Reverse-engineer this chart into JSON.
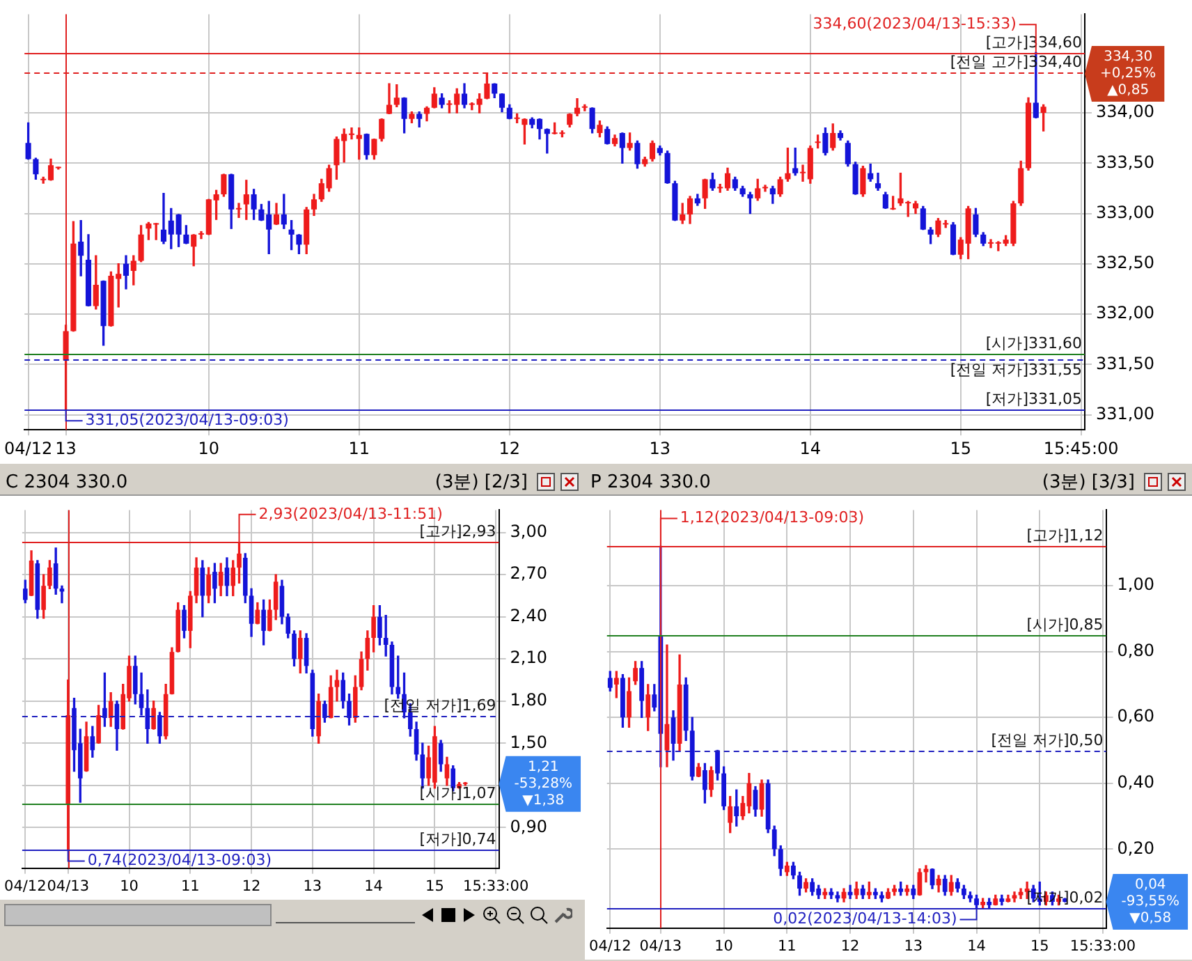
{
  "chart_data": [
    {
      "type": "candlestick",
      "grid": true,
      "legend": false,
      "categories": [
        "04/12",
        null,
        null,
        null,
        null,
        "13",
        null,
        null,
        null,
        null,
        null,
        null,
        null,
        null,
        null,
        null,
        null,
        null,
        null,
        null,
        null,
        null,
        null,
        null,
        "10",
        null,
        null,
        null,
        null,
        null,
        null,
        null,
        null,
        null,
        null,
        null,
        null,
        null,
        null,
        null,
        null,
        null,
        null,
        null,
        "11",
        null,
        null,
        null,
        null,
        null,
        null,
        null,
        null,
        null,
        null,
        null,
        null,
        null,
        null,
        null,
        null,
        null,
        null,
        null,
        "12",
        null,
        null,
        null,
        null,
        null,
        null,
        null,
        null,
        null,
        null,
        null,
        null,
        null,
        null,
        null,
        null,
        null,
        null,
        null,
        "13",
        null,
        null,
        null,
        null,
        null,
        null,
        null,
        null,
        null,
        null,
        null,
        null,
        null,
        null,
        null,
        null,
        null,
        null,
        null,
        "14",
        null,
        null,
        null,
        null,
        null,
        null,
        null,
        null,
        null,
        null,
        null,
        null,
        null,
        null,
        null,
        null,
        null,
        null,
        null,
        "15",
        null,
        null,
        null,
        null,
        null,
        null,
        null,
        null,
        null,
        null,
        null,
        null,
        null,
        null,
        null,
        "15:45:00"
      ],
      "ohlc": [
        [
          333.7,
          333.9,
          333.54,
          333.54
        ],
        [
          333.54,
          333.55,
          333.34,
          333.39
        ],
        [
          333.33,
          333.36,
          333.3,
          333.33
        ],
        [
          333.33,
          333.54,
          333.33,
          333.48
        ],
        [
          333.45,
          333.46,
          333.44,
          333.45
        ],
        [
          331.54,
          331.89,
          331.05,
          331.83
        ],
        [
          331.83,
          332.92,
          331.83,
          332.7
        ],
        [
          332.72,
          332.93,
          332.38,
          332.58
        ],
        [
          332.54,
          332.79,
          332.08,
          332.08
        ],
        [
          332.08,
          332.58,
          332.05,
          332.29
        ],
        [
          332.33,
          332.33,
          331.69,
          331.88
        ],
        [
          331.88,
          332.42,
          331.88,
          332.38
        ],
        [
          332.35,
          332.5,
          332.07,
          332.4
        ],
        [
          332.5,
          332.58,
          332.25,
          332.38
        ],
        [
          332.43,
          332.58,
          332.29,
          332.53
        ],
        [
          332.53,
          332.88,
          332.52,
          332.79
        ],
        [
          332.85,
          332.91,
          332.74,
          332.9
        ],
        [
          332.89,
          332.9,
          332.74,
          332.89
        ],
        [
          332.84,
          333.2,
          332.7,
          332.72
        ],
        [
          332.93,
          333.05,
          332.65,
          332.79
        ],
        [
          332.99,
          332.99,
          332.67,
          332.79
        ],
        [
          332.79,
          332.88,
          332.7,
          332.7
        ],
        [
          332.67,
          332.79,
          332.48,
          332.79
        ],
        [
          332.79,
          332.82,
          332.75,
          332.79
        ],
        [
          332.79,
          333.14,
          332.79,
          333.14
        ],
        [
          333.13,
          333.23,
          332.94,
          333.19
        ],
        [
          333.19,
          333.39,
          333.17,
          333.39
        ],
        [
          333.39,
          333.39,
          332.85,
          333.04
        ],
        [
          333.04,
          333.1,
          332.96,
          333.04
        ],
        [
          333.09,
          333.33,
          332.94,
          333.19
        ],
        [
          333.19,
          333.24,
          332.94,
          333.04
        ],
        [
          333.04,
          333.09,
          332.93,
          332.93
        ],
        [
          332.99,
          333.12,
          332.6,
          332.84
        ],
        [
          332.89,
          333.1,
          332.89,
          332.99
        ],
        [
          332.99,
          333.19,
          332.85,
          332.89
        ],
        [
          332.84,
          332.93,
          332.64,
          332.79
        ],
        [
          332.79,
          332.79,
          332.6,
          332.69
        ],
        [
          332.69,
          333.06,
          332.6,
          333.04
        ],
        [
          333.04,
          333.19,
          332.98,
          333.14
        ],
        [
          333.14,
          333.34,
          333.12,
          333.3
        ],
        [
          333.25,
          333.48,
          333.22,
          333.45
        ],
        [
          333.48,
          333.76,
          333.34,
          333.74
        ],
        [
          333.72,
          333.84,
          333.51,
          333.79
        ],
        [
          333.78,
          333.85,
          333.74,
          333.78
        ],
        [
          333.74,
          333.85,
          333.54,
          333.78
        ],
        [
          333.79,
          333.79,
          333.54,
          333.58
        ],
        [
          333.58,
          333.74,
          333.54,
          333.74
        ],
        [
          333.74,
          333.94,
          333.72,
          333.94
        ],
        [
          333.99,
          334.29,
          333.99,
          334.08
        ],
        [
          334.08,
          334.28,
          334.06,
          334.15
        ],
        [
          334.15,
          334.15,
          333.8,
          333.94
        ],
        [
          333.94,
          334.01,
          333.9,
          333.99
        ],
        [
          333.99,
          334.01,
          333.86,
          333.94
        ],
        [
          333.99,
          334.06,
          333.92,
          334.05
        ],
        [
          334.05,
          334.25,
          334.05,
          334.19
        ],
        [
          334.15,
          334.19,
          334.05,
          334.08
        ],
        [
          334.08,
          334.12,
          334.0,
          334.08
        ],
        [
          334.08,
          334.24,
          334.0,
          334.19
        ],
        [
          334.19,
          334.29,
          334.05,
          334.08
        ],
        [
          334.08,
          334.1,
          334.03,
          334.08
        ],
        [
          334.08,
          334.19,
          334.0,
          334.14
        ],
        [
          334.14,
          334.39,
          334.14,
          334.29
        ],
        [
          334.29,
          334.29,
          334.15,
          334.19
        ],
        [
          334.19,
          334.19,
          334.01,
          334.05
        ],
        [
          334.05,
          334.08,
          333.94,
          333.94
        ],
        [
          333.94,
          333.99,
          333.9,
          333.94
        ],
        [
          333.88,
          333.94,
          333.69,
          333.94
        ],
        [
          333.94,
          333.95,
          333.85,
          333.88
        ],
        [
          333.94,
          333.94,
          333.74,
          333.84
        ],
        [
          333.84,
          333.84,
          333.6,
          333.79
        ],
        [
          333.79,
          333.9,
          333.79,
          333.79
        ],
        [
          333.79,
          333.82,
          333.76,
          333.79
        ],
        [
          333.88,
          333.99,
          333.86,
          333.99
        ],
        [
          333.99,
          334.14,
          333.97,
          334.05
        ],
        [
          334.05,
          334.08,
          334.02,
          334.05
        ],
        [
          334.05,
          334.05,
          333.8,
          333.84
        ],
        [
          333.8,
          333.92,
          333.76,
          333.88
        ],
        [
          333.84,
          333.86,
          333.69,
          333.69
        ],
        [
          333.69,
          333.78,
          333.67,
          333.75
        ],
        [
          333.8,
          333.8,
          333.5,
          333.65
        ],
        [
          333.65,
          333.8,
          333.63,
          333.7
        ],
        [
          333.7,
          333.72,
          333.45,
          333.49
        ],
        [
          333.49,
          333.56,
          333.47,
          333.54
        ],
        [
          333.54,
          333.72,
          333.52,
          333.7
        ],
        [
          333.65,
          333.67,
          333.58,
          333.6
        ],
        [
          333.6,
          333.62,
          333.3,
          333.3
        ],
        [
          333.3,
          333.32,
          332.93,
          332.93
        ],
        [
          332.93,
          333.1,
          332.9,
          332.99
        ],
        [
          332.99,
          333.17,
          332.9,
          333.15
        ],
        [
          333.15,
          333.19,
          333.08,
          333.1
        ],
        [
          333.15,
          333.34,
          333.05,
          333.34
        ],
        [
          333.34,
          333.4,
          333.23,
          333.25
        ],
        [
          333.25,
          333.29,
          333.21,
          333.25
        ],
        [
          333.25,
          333.45,
          333.23,
          333.4
        ],
        [
          333.34,
          333.36,
          333.23,
          333.25
        ],
        [
          333.25,
          333.27,
          333.17,
          333.19
        ],
        [
          333.19,
          333.21,
          333.0,
          333.15
        ],
        [
          333.15,
          333.34,
          333.13,
          333.25
        ],
        [
          333.25,
          333.28,
          333.22,
          333.25
        ],
        [
          333.25,
          333.27,
          333.1,
          333.19
        ],
        [
          333.19,
          333.36,
          333.17,
          333.34
        ],
        [
          333.34,
          333.65,
          333.32,
          333.4
        ],
        [
          333.45,
          333.65,
          333.38,
          333.4
        ],
        [
          333.4,
          333.48,
          333.32,
          333.4
        ],
        [
          333.34,
          333.67,
          333.3,
          333.65
        ],
        [
          333.7,
          333.78,
          333.65,
          333.7
        ],
        [
          333.8,
          333.85,
          333.58,
          333.6
        ],
        [
          333.65,
          333.89,
          333.63,
          333.8
        ],
        [
          333.8,
          333.82,
          333.73,
          333.75
        ],
        [
          333.7,
          333.72,
          333.47,
          333.49
        ],
        [
          333.49,
          333.51,
          333.19,
          333.19
        ],
        [
          333.19,
          333.47,
          333.17,
          333.45
        ],
        [
          333.4,
          333.49,
          333.32,
          333.34
        ],
        [
          333.3,
          333.4,
          333.23,
          333.25
        ],
        [
          333.19,
          333.21,
          333.05,
          333.05
        ],
        [
          333.04,
          333.17,
          333.04,
          333.04
        ],
        [
          333.1,
          333.4,
          333.08,
          333.15
        ],
        [
          333.1,
          333.12,
          332.97,
          333.1
        ],
        [
          333.05,
          333.12,
          333.0,
          333.1
        ],
        [
          333.05,
          333.07,
          332.84,
          332.84
        ],
        [
          332.84,
          332.86,
          332.7,
          332.79
        ],
        [
          332.79,
          332.95,
          332.77,
          332.93
        ],
        [
          332.89,
          332.93,
          332.86,
          332.89
        ],
        [
          332.89,
          332.91,
          332.59,
          332.59
        ],
        [
          332.59,
          332.76,
          332.55,
          332.74
        ],
        [
          332.7,
          333.07,
          332.55,
          333.05
        ],
        [
          332.99,
          333.05,
          332.77,
          332.79
        ],
        [
          332.79,
          332.81,
          332.68,
          332.7
        ],
        [
          332.7,
          332.74,
          332.66,
          332.7
        ],
        [
          332.7,
          332.72,
          332.63,
          332.7
        ],
        [
          332.7,
          332.78,
          332.68,
          332.74
        ],
        [
          332.7,
          333.12,
          332.68,
          333.1
        ],
        [
          333.1,
          333.52,
          333.08,
          333.45
        ],
        [
          333.45,
          334.15,
          333.43,
          334.1
        ],
        [
          334.1,
          334.6,
          333.95,
          333.95
        ],
        [
          334.0,
          334.08,
          333.82,
          334.06
        ],
        null,
        null,
        null,
        null,
        null
      ],
      "ylim": [
        330.85,
        334.98
      ],
      "yticks": [
        {
          "value": 331,
          "label": "331,00"
        },
        {
          "value": 331.5,
          "label": "331,50"
        },
        {
          "value": 332,
          "label": "332,00"
        },
        {
          "value": 332.5,
          "label": "332,50"
        },
        {
          "value": 333,
          "label": "333,00"
        },
        {
          "value": 333.5,
          "label": "333,50"
        },
        {
          "value": 334,
          "label": "334,00"
        }
      ],
      "ref_lines": [
        {
          "axis": "x",
          "value": "13",
          "color": "#e02020"
        },
        {
          "axis": "y",
          "value": 334.6,
          "label": "[고가]334,60",
          "color": "#e02020",
          "line_style": "solid"
        },
        {
          "axis": "y",
          "value": 334.4,
          "label": "[전일 고가]334,40",
          "color": "#e02020",
          "line_style": "dashed"
        },
        {
          "axis": "y",
          "value": 331.6,
          "label": "[시가]331,60",
          "color": "#208020",
          "line_style": "solid"
        },
        {
          "axis": "y",
          "value": 331.55,
          "label": "[전일 저가]331,55",
          "color": "#2020c0",
          "line_style": "dashed"
        },
        {
          "axis": "y",
          "value": 331.05,
          "label": "[저가]331,05",
          "color": "#2020c0",
          "line_style": "solid"
        }
      ],
      "annotations": [
        {
          "text": "334,60(2023/04/13-15:33)",
          "y": 334.6
        },
        {
          "text": "331,05(2023/04/13-09:03)",
          "y": 331.05
        },
        "334,30\n+0,25%\n▲0,85"
      ]
    },
    {
      "type": "candlestick",
      "grid": true,
      "legend": false,
      "title": "C 2304 330.0",
      "subtitle": "(3분) [2/3]",
      "categories": [
        "04/12",
        null,
        null,
        null,
        null,
        null,
        null,
        "04/13",
        null,
        null,
        null,
        null,
        null,
        null,
        null,
        null,
        null,
        "10",
        null,
        null,
        null,
        null,
        null,
        null,
        null,
        null,
        null,
        "11",
        null,
        null,
        null,
        null,
        null,
        null,
        null,
        null,
        null,
        "12",
        null,
        null,
        null,
        null,
        null,
        null,
        null,
        null,
        null,
        "13",
        null,
        null,
        null,
        null,
        null,
        null,
        null,
        null,
        null,
        "14",
        null,
        null,
        null,
        null,
        null,
        null,
        null,
        null,
        null,
        "15",
        null,
        null,
        null,
        null,
        null,
        null,
        null,
        null,
        null,
        "15:33:00"
      ],
      "ohlc": [
        [
          2.6,
          2.66,
          2.5,
          2.52
        ],
        [
          2.55,
          2.87,
          2.55,
          2.8
        ],
        [
          2.78,
          2.8,
          2.39,
          2.45
        ],
        [
          2.45,
          2.7,
          2.39,
          2.62
        ],
        [
          2.62,
          2.8,
          2.6,
          2.75
        ],
        [
          2.78,
          2.89,
          2.56,
          2.6
        ],
        [
          2.6,
          2.62,
          2.5,
          2.58
        ],
        [
          1.07,
          1.95,
          0.74,
          1.7
        ],
        [
          1.75,
          1.82,
          1.3,
          1.45
        ],
        [
          1.5,
          1.6,
          1.08,
          1.25
        ],
        [
          1.3,
          1.65,
          1.3,
          1.55
        ],
        [
          1.55,
          1.62,
          1.4,
          1.45
        ],
        [
          1.5,
          1.77,
          1.5,
          1.7
        ],
        [
          1.75,
          2.0,
          1.62,
          1.68
        ],
        [
          1.68,
          1.86,
          1.62,
          1.8
        ],
        [
          1.78,
          1.8,
          1.45,
          1.6
        ],
        [
          1.6,
          1.92,
          1.6,
          1.85
        ],
        [
          1.82,
          2.12,
          1.8,
          2.05
        ],
        [
          2.05,
          2.12,
          1.78,
          1.85
        ],
        [
          1.85,
          2.0,
          1.7,
          1.75
        ],
        [
          1.75,
          1.88,
          1.5,
          1.6
        ],
        [
          1.6,
          1.8,
          1.6,
          1.75
        ],
        [
          1.7,
          1.72,
          1.5,
          1.55
        ],
        [
          1.55,
          1.92,
          1.53,
          1.85
        ],
        [
          1.85,
          2.18,
          1.85,
          2.15
        ],
        [
          2.15,
          2.5,
          2.15,
          2.45
        ],
        [
          2.45,
          2.48,
          2.25,
          2.3
        ],
        [
          2.3,
          2.58,
          2.18,
          2.55
        ],
        [
          2.55,
          2.82,
          2.5,
          2.75
        ],
        [
          2.75,
          2.8,
          2.4,
          2.55
        ],
        [
          2.55,
          2.75,
          2.5,
          2.7
        ],
        [
          2.72,
          2.78,
          2.5,
          2.6
        ],
        [
          2.62,
          2.78,
          2.55,
          2.72
        ],
        [
          2.75,
          2.82,
          2.55,
          2.62
        ],
        [
          2.62,
          2.8,
          2.55,
          2.75
        ],
        [
          2.75,
          2.93,
          2.64,
          2.85
        ],
        [
          2.82,
          2.85,
          2.5,
          2.55
        ],
        [
          2.55,
          2.6,
          2.26,
          2.35
        ],
        [
          2.35,
          2.5,
          2.35,
          2.45
        ],
        [
          2.45,
          2.52,
          2.2,
          2.3
        ],
        [
          2.3,
          2.52,
          2.3,
          2.45
        ],
        [
          2.45,
          2.7,
          2.38,
          2.65
        ],
        [
          2.62,
          2.66,
          2.35,
          2.4
        ],
        [
          2.4,
          2.42,
          2.25,
          2.28
        ],
        [
          2.28,
          2.3,
          2.05,
          2.1
        ],
        [
          2.1,
          2.3,
          2.0,
          2.25
        ],
        [
          2.25,
          2.28,
          2.0,
          2.05
        ],
        [
          2.0,
          2.02,
          1.55,
          1.6
        ],
        [
          1.55,
          1.85,
          1.5,
          1.8
        ],
        [
          1.78,
          1.8,
          1.65,
          1.68
        ],
        [
          1.68,
          1.98,
          1.68,
          1.9
        ],
        [
          1.9,
          2.02,
          1.8,
          1.95
        ],
        [
          1.95,
          2.0,
          1.75,
          1.8
        ],
        [
          1.8,
          1.85,
          1.63,
          1.68
        ],
        [
          1.68,
          1.98,
          1.65,
          1.9
        ],
        [
          1.9,
          2.15,
          1.88,
          2.1
        ],
        [
          2.1,
          2.3,
          2.02,
          2.25
        ],
        [
          2.25,
          2.48,
          2.15,
          2.4
        ],
        [
          2.4,
          2.48,
          2.2,
          2.25
        ],
        [
          2.25,
          2.41,
          2.12,
          2.2
        ],
        [
          2.2,
          2.22,
          1.85,
          1.9
        ],
        [
          1.9,
          2.12,
          1.82,
          1.85
        ],
        [
          1.85,
          2.0,
          1.68,
          1.72
        ],
        [
          1.72,
          1.78,
          1.55,
          1.6
        ],
        [
          1.6,
          1.65,
          1.38,
          1.42
        ],
        [
          1.42,
          1.5,
          1.18,
          1.25
        ],
        [
          1.25,
          1.48,
          1.2,
          1.4
        ],
        [
          1.22,
          1.62,
          1.18,
          1.55
        ],
        [
          1.5,
          1.52,
          1.3,
          1.35
        ],
        [
          1.25,
          1.4,
          1.2,
          1.35
        ],
        [
          1.32,
          1.34,
          1.16,
          1.18
        ],
        [
          1.18,
          1.22,
          1.18,
          1.21
        ],
        [
          1.21,
          1.22,
          1.2,
          1.21
        ],
        null,
        null,
        null,
        null,
        null
      ],
      "ylim": [
        0.61,
        3.16
      ],
      "yticks": [
        {
          "value": 0.9,
          "label": "0,90"
        },
        {
          "value": 1.2,
          "label": null
        },
        {
          "value": 1.5,
          "label": "1,50"
        },
        {
          "value": 1.8,
          "label": "1,80"
        },
        {
          "value": 2.1,
          "label": "2,10"
        },
        {
          "value": 2.4,
          "label": "2,40"
        },
        {
          "value": 2.7,
          "label": "2,70"
        },
        {
          "value": 3.0,
          "label": "3,00"
        }
      ],
      "ref_lines": [
        {
          "axis": "x",
          "value": "04/13",
          "color": "#e02020"
        },
        {
          "axis": "y",
          "value": 2.93,
          "label": "[고가]2,93",
          "color": "#e02020",
          "line_style": "solid"
        },
        {
          "axis": "y",
          "value": 1.69,
          "label": "[전일 저가]1,69",
          "color": "#2020c0",
          "line_style": "dashed"
        },
        {
          "axis": "y",
          "value": 1.07,
          "label": "[시가]1,07",
          "color": "#208020",
          "line_style": "solid"
        },
        {
          "axis": "y",
          "value": 0.74,
          "label": "[저가]0,74",
          "color": "#2020c0",
          "line_style": "solid"
        }
      ],
      "annotations": [
        {
          "text": "2,93(2023/04/13-11:51)",
          "y": 2.93
        },
        {
          "text": "0,74(2023/04/13-09:03)",
          "y": 0.74
        },
        "1,21\n-53,28%\n▼1,38"
      ]
    },
    {
      "type": "candlestick",
      "grid": true,
      "legend": false,
      "title": "P 2304 330.0",
      "subtitle": "(3분) [3/3]",
      "categories": [
        "04/12",
        null,
        null,
        null,
        null,
        null,
        null,
        null,
        "04/13",
        null,
        null,
        null,
        null,
        null,
        null,
        null,
        null,
        null,
        "10",
        null,
        null,
        null,
        null,
        null,
        null,
        null,
        null,
        null,
        "11",
        null,
        null,
        null,
        null,
        null,
        null,
        null,
        null,
        null,
        "12",
        null,
        null,
        null,
        null,
        null,
        null,
        null,
        null,
        null,
        "13",
        null,
        null,
        null,
        null,
        null,
        null,
        null,
        null,
        null,
        "14",
        null,
        null,
        null,
        null,
        null,
        null,
        null,
        null,
        null,
        "15",
        null,
        null,
        null,
        null,
        null,
        null,
        null,
        null,
        null,
        "15:33:00"
      ],
      "ohlc": [
        [
          0.72,
          0.74,
          0.68,
          0.69
        ],
        [
          0.7,
          0.74,
          0.66,
          0.72
        ],
        [
          0.72,
          0.73,
          0.57,
          0.6
        ],
        [
          0.6,
          0.72,
          0.57,
          0.68
        ],
        [
          0.71,
          0.77,
          0.7,
          0.75
        ],
        [
          0.75,
          0.77,
          0.6,
          0.65
        ],
        [
          0.6,
          0.7,
          0.56,
          0.67
        ],
        [
          0.67,
          0.7,
          0.62,
          0.63
        ],
        [
          0.85,
          1.12,
          0.45,
          0.55
        ],
        [
          0.5,
          0.82,
          0.45,
          0.58
        ],
        [
          0.6,
          0.62,
          0.47,
          0.52
        ],
        [
          0.52,
          0.79,
          0.5,
          0.7
        ],
        [
          0.7,
          0.72,
          0.53,
          0.56
        ],
        [
          0.56,
          0.6,
          0.41,
          0.42
        ],
        [
          0.42,
          0.46,
          0.42,
          0.45
        ],
        [
          0.44,
          0.46,
          0.34,
          0.38
        ],
        [
          0.38,
          0.45,
          0.36,
          0.44
        ],
        [
          0.5,
          0.5,
          0.41,
          0.43
        ],
        [
          0.43,
          0.45,
          0.32,
          0.33
        ],
        [
          0.28,
          0.36,
          0.25,
          0.33
        ],
        [
          0.33,
          0.38,
          0.27,
          0.3
        ],
        [
          0.3,
          0.36,
          0.29,
          0.34
        ],
        [
          0.33,
          0.43,
          0.31,
          0.4
        ],
        [
          0.38,
          0.39,
          0.3,
          0.32
        ],
        [
          0.32,
          0.41,
          0.3,
          0.4
        ],
        [
          0.4,
          0.41,
          0.25,
          0.26
        ],
        [
          0.26,
          0.27,
          0.18,
          0.2
        ],
        [
          0.2,
          0.21,
          0.12,
          0.14
        ],
        [
          0.13,
          0.16,
          0.12,
          0.15
        ],
        [
          0.15,
          0.16,
          0.11,
          0.12
        ],
        [
          0.12,
          0.13,
          0.06,
          0.08
        ],
        [
          0.08,
          0.11,
          0.07,
          0.1
        ],
        [
          0.1,
          0.11,
          0.06,
          0.07
        ],
        [
          0.08,
          0.09,
          0.05,
          0.06
        ],
        [
          0.06,
          0.08,
          0.05,
          0.07
        ],
        [
          0.07,
          0.08,
          0.05,
          0.06
        ],
        [
          0.06,
          0.07,
          0.04,
          0.05
        ],
        [
          0.05,
          0.08,
          0.04,
          0.07
        ],
        [
          0.07,
          0.09,
          0.05,
          0.06
        ],
        [
          0.06,
          0.1,
          0.05,
          0.08
        ],
        [
          0.08,
          0.09,
          0.05,
          0.06
        ],
        [
          0.06,
          0.1,
          0.05,
          0.07
        ],
        [
          0.07,
          0.08,
          0.05,
          0.06
        ],
        [
          0.06,
          0.07,
          0.04,
          0.05
        ],
        [
          0.05,
          0.08,
          0.05,
          0.07
        ],
        [
          0.07,
          0.09,
          0.06,
          0.08
        ],
        [
          0.08,
          0.1,
          0.06,
          0.07
        ],
        [
          0.07,
          0.09,
          0.06,
          0.08
        ],
        [
          0.08,
          0.09,
          0.05,
          0.06
        ],
        [
          0.06,
          0.14,
          0.06,
          0.13
        ],
        [
          0.13,
          0.15,
          0.1,
          0.14
        ],
        [
          0.14,
          0.14,
          0.08,
          0.09
        ],
        [
          0.09,
          0.12,
          0.07,
          0.11
        ],
        [
          0.11,
          0.12,
          0.06,
          0.07
        ],
        [
          0.07,
          0.12,
          0.06,
          0.1
        ],
        [
          0.1,
          0.11,
          0.07,
          0.08
        ],
        [
          0.08,
          0.09,
          0.05,
          0.06
        ],
        [
          0.06,
          0.07,
          0.04,
          0.05
        ],
        [
          0.05,
          0.06,
          0.02,
          0.03
        ],
        [
          0.03,
          0.05,
          0.02,
          0.04
        ],
        [
          0.04,
          0.05,
          0.02,
          0.03
        ],
        [
          0.03,
          0.06,
          0.03,
          0.05
        ],
        [
          0.05,
          0.06,
          0.03,
          0.04
        ],
        [
          0.04,
          0.06,
          0.04,
          0.05
        ],
        [
          0.05,
          0.07,
          0.04,
          0.06
        ],
        [
          0.06,
          0.08,
          0.05,
          0.07
        ],
        [
          0.07,
          0.1,
          0.05,
          0.08
        ],
        [
          0.08,
          0.09,
          0.04,
          0.05
        ],
        [
          0.05,
          0.1,
          0.03,
          0.04
        ],
        [
          0.04,
          0.07,
          0.03,
          0.06
        ],
        [
          0.06,
          0.07,
          0.03,
          0.04
        ],
        [
          0.04,
          0.06,
          0.03,
          0.05
        ],
        [
          0.05,
          0.05,
          0.04,
          0.04
        ],
        null,
        null,
        null,
        null,
        null,
        null
      ],
      "ylim": [
        -0.04,
        1.23
      ],
      "yticks": [
        {
          "value": 0.2,
          "label": "0,20"
        },
        {
          "value": 0.4,
          "label": "0,40"
        },
        {
          "value": 0.6,
          "label": "0,60"
        },
        {
          "value": 0.8,
          "label": "0,80"
        },
        {
          "value": 1.0,
          "label": "1,00"
        }
      ],
      "ref_lines": [
        {
          "axis": "x",
          "value": "04/13",
          "color": "#e02020"
        },
        {
          "axis": "y",
          "value": 1.12,
          "label": "[고가]1,12",
          "color": "#e02020",
          "line_style": "solid"
        },
        {
          "axis": "y",
          "value": 0.85,
          "label": "[시가]0,85",
          "color": "#208020",
          "line_style": "solid"
        },
        {
          "axis": "y",
          "value": 0.5,
          "label": "[전일 저가]0,50",
          "color": "#2020c0",
          "line_style": "dashed"
        },
        {
          "axis": "y",
          "value": 0.02,
          "label": "[저가]0,02",
          "color": "#2020c0",
          "line_style": "solid"
        }
      ],
      "annotations": [
        {
          "text": "1,12(2023/04/13-09:03)",
          "y": 1.12
        },
        {
          "text": "0,02(2023/04/13-14:03)",
          "y": 0.02
        },
        "0,04\n-93,55%\n▼0,58"
      ]
    }
  ]
}
